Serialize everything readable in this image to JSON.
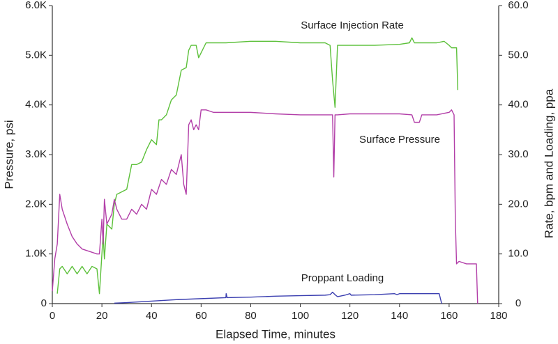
{
  "chart_data": {
    "type": "line",
    "xlabel": "Elapsed Time, minutes",
    "ylabel": "Pressure, psi",
    "y2label": "Rate, bpm and Loading, ppa",
    "xlim": [
      0,
      180
    ],
    "xticks": [
      0,
      20,
      40,
      60,
      80,
      100,
      120,
      140,
      160,
      180
    ],
    "ylim": [
      0,
      6000
    ],
    "yticks": [
      0,
      {
        "value": 1000,
        "label": "1.0K"
      },
      {
        "value": 2000,
        "label": "2.0K"
      },
      {
        "value": 3000,
        "label": "3.0K"
      },
      {
        "value": 4000,
        "label": "4.0K"
      },
      {
        "value": 5000,
        "label": "5.0K"
      },
      {
        "value": 6000,
        "label": "6.0K"
      }
    ],
    "y2lim": [
      0,
      60
    ],
    "y2ticks": [
      0,
      {
        "value": 10,
        "label": "10.0"
      },
      {
        "value": 20,
        "label": "20.0"
      },
      {
        "value": 30,
        "label": "30.0"
      },
      {
        "value": 40,
        "label": "40.0"
      },
      {
        "value": 50,
        "label": "50.0"
      },
      {
        "value": 60,
        "label": "60.0"
      }
    ],
    "grid": false,
    "series": [
      {
        "name": "Surface Injection Rate",
        "color": "#5cc03a",
        "axis": "y2",
        "x": [
          2,
          3,
          4,
          6,
          8,
          10,
          12,
          14,
          16,
          18,
          19,
          20,
          20.5,
          21,
          22,
          24,
          25,
          26,
          28,
          30,
          32,
          34,
          36,
          38,
          40,
          42,
          43,
          44,
          46,
          48,
          50,
          52,
          54,
          55,
          56,
          58,
          59,
          60,
          62,
          70,
          80,
          90,
          100,
          110,
          112,
          113,
          114,
          115,
          120,
          130,
          140,
          144,
          145,
          146,
          150,
          155,
          158,
          160,
          161,
          163,
          163.5
        ],
        "values": [
          2,
          7,
          7.5,
          6,
          7.5,
          6,
          7.5,
          6,
          7.5,
          7,
          2,
          10,
          14,
          9,
          16,
          15,
          20,
          22,
          22.5,
          23,
          28,
          28,
          28.5,
          31,
          33,
          32,
          37,
          37,
          38,
          41,
          42,
          47,
          47.5,
          51,
          52,
          52,
          49.5,
          50.5,
          52.5,
          52.5,
          52.8,
          52.8,
          52.5,
          52.5,
          52,
          45,
          39.5,
          52,
          52,
          52,
          52.2,
          52.5,
          53.5,
          52.5,
          52.5,
          52.5,
          52.8,
          52,
          51.5,
          51.5,
          43
        ]
      },
      {
        "name": "Surface Pressure",
        "color": "#b23ea8",
        "axis": "y",
        "x": [
          0,
          1,
          2,
          3,
          4,
          6,
          8,
          10,
          12,
          15,
          18,
          19,
          20,
          20.5,
          21,
          22,
          24,
          25,
          26,
          28,
          30,
          32,
          34,
          36,
          38,
          40,
          42,
          44,
          46,
          48,
          50,
          52,
          53,
          54,
          55,
          56,
          57,
          58,
          59,
          60,
          62,
          65,
          70,
          80,
          90,
          100,
          110,
          113,
          113.5,
          114,
          115,
          120,
          130,
          140,
          145,
          146,
          148,
          149,
          155,
          160,
          161,
          162,
          162.5,
          163,
          164,
          167,
          168,
          171,
          171.5
        ],
        "values": [
          250,
          900,
          1200,
          2200,
          1900,
          1600,
          1350,
          1200,
          1100,
          1050,
          1000,
          1000,
          1700,
          1200,
          2100,
          1600,
          1800,
          2100,
          1900,
          1700,
          1700,
          1900,
          1800,
          2000,
          1900,
          2300,
          2200,
          2500,
          2400,
          2700,
          2600,
          3000,
          2400,
          2200,
          3600,
          3700,
          3500,
          3600,
          3500,
          3900,
          3900,
          3850,
          3850,
          3850,
          3820,
          3800,
          3800,
          3800,
          2550,
          3800,
          3800,
          3820,
          3820,
          3820,
          3800,
          3650,
          3650,
          3800,
          3800,
          3850,
          3900,
          3800,
          1700,
          800,
          850,
          800,
          800,
          800,
          0
        ]
      },
      {
        "name": "Proppant Loading",
        "color": "#3b3fb0",
        "axis": "y2",
        "x": [
          25,
          30,
          40,
          50,
          60,
          70,
          70.1,
          70.5,
          80,
          90,
          100,
          110,
          112,
          113,
          114,
          115,
          118,
          120,
          120.5,
          130,
          138,
          139,
          140,
          150,
          156,
          157
        ],
        "values": [
          0.1,
          0.2,
          0.5,
          0.8,
          1.0,
          1.2,
          2,
          1.2,
          1.3,
          1.5,
          1.6,
          1.7,
          1.8,
          2.3,
          1.8,
          1.4,
          1.7,
          2,
          1.7,
          1.8,
          2,
          1.8,
          2.0,
          2.0,
          2.0,
          0
        ]
      }
    ]
  }
}
